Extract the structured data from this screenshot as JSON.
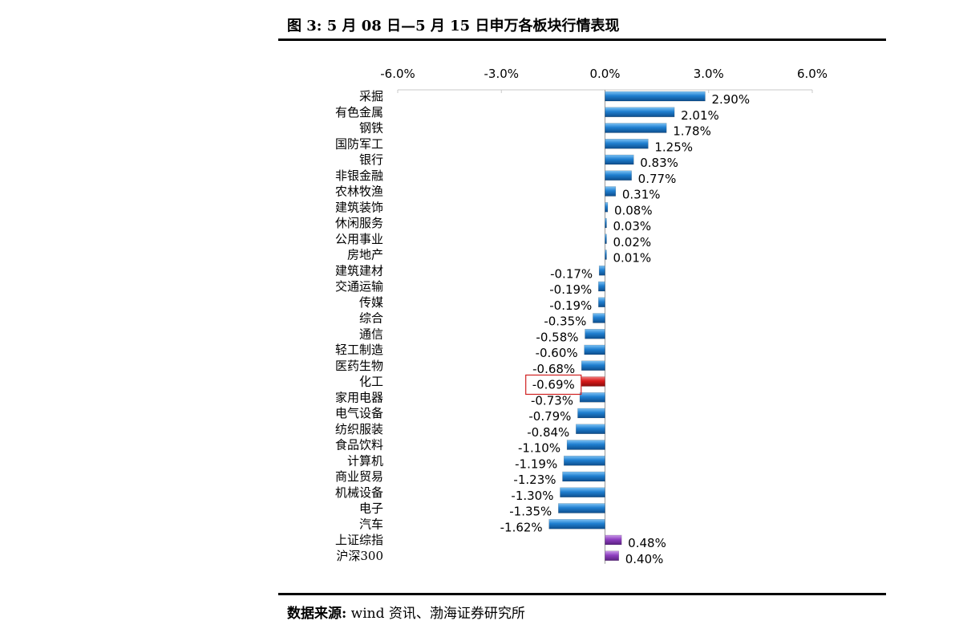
{
  "figure": {
    "title": "图 3:  5 月 08 日—5 月 15 日申万各板块行情表现",
    "source_label": "数据来源:",
    "source_text": " wind 资讯、渤海证券研究所"
  },
  "chart_data": {
    "type": "bar",
    "orientation": "horizontal",
    "categories": [
      "采掘",
      "有色金属",
      "钢铁",
      "国防军工",
      "银行",
      "非银金融",
      "农林牧渔",
      "建筑装饰",
      "休闲服务",
      "公用事业",
      "房地产",
      "建筑建材",
      "交通运输",
      "传媒",
      "综合",
      "通信",
      "轻工制造",
      "医药生物",
      "化工",
      "家用电器",
      "电气设备",
      "纺织服装",
      "食品饮料",
      "计算机",
      "商业贸易",
      "机械设备",
      "电子",
      "汽车",
      "上证综指",
      "沪深300"
    ],
    "values": [
      2.9,
      2.01,
      1.78,
      1.25,
      0.83,
      0.77,
      0.31,
      0.08,
      0.03,
      0.02,
      0.01,
      -0.17,
      -0.19,
      -0.19,
      -0.35,
      -0.58,
      -0.6,
      -0.68,
      -0.69,
      -0.73,
      -0.79,
      -0.84,
      -1.1,
      -1.19,
      -1.23,
      -1.3,
      -1.35,
      -1.62,
      0.48,
      0.4
    ],
    "value_labels": [
      "2.90%",
      "2.01%",
      "1.78%",
      "1.25%",
      "0.83%",
      "0.77%",
      "0.31%",
      "0.08%",
      "0.03%",
      "0.02%",
      "0.01%",
      "-0.17%",
      "-0.19%",
      "-0.19%",
      "-0.35%",
      "-0.58%",
      "-0.60%",
      "-0.68%",
      "-0.69%",
      "-0.73%",
      "-0.79%",
      "-0.84%",
      "-1.10%",
      "-1.19%",
      "-1.23%",
      "-1.30%",
      "-1.35%",
      "-1.62%",
      "0.48%",
      "0.40%"
    ],
    "bar_colors": [
      "#1f7fd0",
      "#1f7fd0",
      "#1f7fd0",
      "#1f7fd0",
      "#1f7fd0",
      "#1f7fd0",
      "#1f7fd0",
      "#1f7fd0",
      "#1f7fd0",
      "#1f7fd0",
      "#1f7fd0",
      "#1f7fd0",
      "#1f7fd0",
      "#1f7fd0",
      "#1f7fd0",
      "#1f7fd0",
      "#1f7fd0",
      "#1f7fd0",
      "#d91a1a",
      "#1f7fd0",
      "#1f7fd0",
      "#1f7fd0",
      "#1f7fd0",
      "#1f7fd0",
      "#1f7fd0",
      "#1f7fd0",
      "#1f7fd0",
      "#1f7fd0",
      "#8e3fc0",
      "#8e3fc0"
    ],
    "highlighted_category": "化工",
    "highlight_box_color": "#d02020",
    "xlim": [
      -6.0,
      6.0
    ],
    "x_ticks": [
      -6.0,
      -3.0,
      0.0,
      3.0,
      6.0
    ],
    "x_tick_labels": [
      "-6.0%",
      "-3.0%",
      "0.0%",
      "3.0%",
      "6.0%"
    ],
    "x_axis_position": "top",
    "grid": false,
    "legend": false,
    "xlabel": "",
    "ylabel": ""
  }
}
